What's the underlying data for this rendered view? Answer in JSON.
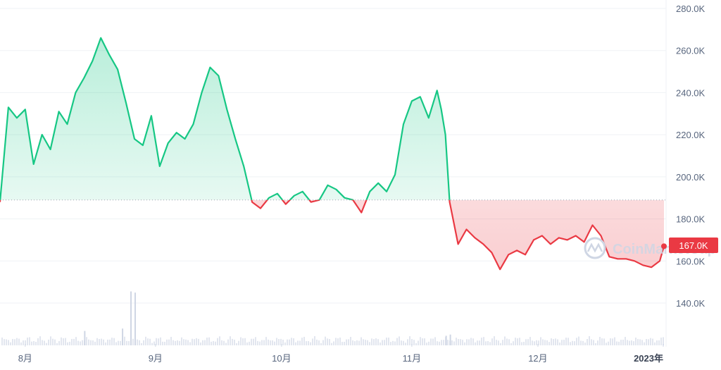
{
  "watermark": "CoinMarketCap",
  "colors": {
    "up": "#16c784",
    "down": "#ea3943",
    "grid": "#eff2f5",
    "volume": "#cfd6e4",
    "axis_text": "#58667e"
  },
  "chart_data": {
    "type": "line",
    "title": "",
    "xlabel": "",
    "ylabel": "",
    "ylim": [
      122000,
      282000
    ],
    "baseline": 189000,
    "current_value_label": "167.0K",
    "current_value": 167000,
    "y_ticks": [
      {
        "value": 140000,
        "label": "140.0K"
      },
      {
        "value": 160000,
        "label": "160.0K"
      },
      {
        "value": 180000,
        "label": "180.0K"
      },
      {
        "value": 200000,
        "label": "200.0K"
      },
      {
        "value": 220000,
        "label": "220.0K"
      },
      {
        "value": 240000,
        "label": "240.0K"
      },
      {
        "value": 260000,
        "label": "260.0K"
      },
      {
        "value": 280000,
        "label": "280.0K"
      }
    ],
    "x_range": [
      "2022-07-26",
      "2022-12-31"
    ],
    "x_ticks": [
      {
        "date": "2022-08-01",
        "label": "8月",
        "bold": false
      },
      {
        "date": "2022-09-01",
        "label": "9月",
        "bold": false
      },
      {
        "date": "2022-10-01",
        "label": "10月",
        "bold": false
      },
      {
        "date": "2022-11-01",
        "label": "11月",
        "bold": false
      },
      {
        "date": "2022-12-01",
        "label": "12月",
        "bold": false
      },
      {
        "date": "2023-01-01",
        "label": "2023年",
        "bold": true
      }
    ],
    "grid": true,
    "series": [
      {
        "values": [
          [
            "2022-07-26",
            188000
          ],
          [
            "2022-07-28",
            233000
          ],
          [
            "2022-07-30",
            228000
          ],
          [
            "2022-08-01",
            232000
          ],
          [
            "2022-08-03",
            206000
          ],
          [
            "2022-08-05",
            220000
          ],
          [
            "2022-08-07",
            213000
          ],
          [
            "2022-08-09",
            231000
          ],
          [
            "2022-08-11",
            225000
          ],
          [
            "2022-08-13",
            240000
          ],
          [
            "2022-08-15",
            247000
          ],
          [
            "2022-08-17",
            255000
          ],
          [
            "2022-08-19",
            266000
          ],
          [
            "2022-08-21",
            258000
          ],
          [
            "2022-08-23",
            251000
          ],
          [
            "2022-08-25",
            235000
          ],
          [
            "2022-08-27",
            218000
          ],
          [
            "2022-08-29",
            215000
          ],
          [
            "2022-08-31",
            229000
          ],
          [
            "2022-09-02",
            205000
          ],
          [
            "2022-09-04",
            216000
          ],
          [
            "2022-09-06",
            221000
          ],
          [
            "2022-09-08",
            218000
          ],
          [
            "2022-09-10",
            225000
          ],
          [
            "2022-09-12",
            240000
          ],
          [
            "2022-09-14",
            252000
          ],
          [
            "2022-09-16",
            248000
          ],
          [
            "2022-09-18",
            232000
          ],
          [
            "2022-09-20",
            218000
          ],
          [
            "2022-09-22",
            205000
          ],
          [
            "2022-09-24",
            188000
          ],
          [
            "2022-09-26",
            185000
          ],
          [
            "2022-09-28",
            190000
          ],
          [
            "2022-09-30",
            192000
          ],
          [
            "2022-10-02",
            187000
          ],
          [
            "2022-10-04",
            191000
          ],
          [
            "2022-10-06",
            193000
          ],
          [
            "2022-10-08",
            188000
          ],
          [
            "2022-10-10",
            189000
          ],
          [
            "2022-10-12",
            196000
          ],
          [
            "2022-10-14",
            194000
          ],
          [
            "2022-10-16",
            190000
          ],
          [
            "2022-10-18",
            189000
          ],
          [
            "2022-10-20",
            183000
          ],
          [
            "2022-10-22",
            193000
          ],
          [
            "2022-10-24",
            197000
          ],
          [
            "2022-10-26",
            193000
          ],
          [
            "2022-10-28",
            201000
          ],
          [
            "2022-10-30",
            225000
          ],
          [
            "2022-11-01",
            236000
          ],
          [
            "2022-11-03",
            238000
          ],
          [
            "2022-11-05",
            228000
          ],
          [
            "2022-11-07",
            241000
          ],
          [
            "2022-11-08",
            232000
          ],
          [
            "2022-11-09",
            220000
          ],
          [
            "2022-11-10",
            188000
          ],
          [
            "2022-11-12",
            168000
          ],
          [
            "2022-11-14",
            175000
          ],
          [
            "2022-11-16",
            171000
          ],
          [
            "2022-11-18",
            168000
          ],
          [
            "2022-11-20",
            164000
          ],
          [
            "2022-11-22",
            156000
          ],
          [
            "2022-11-24",
            163000
          ],
          [
            "2022-11-26",
            165000
          ],
          [
            "2022-11-28",
            163000
          ],
          [
            "2022-11-30",
            170000
          ],
          [
            "2022-12-02",
            172000
          ],
          [
            "2022-12-04",
            168000
          ],
          [
            "2022-12-06",
            171000
          ],
          [
            "2022-12-08",
            170000
          ],
          [
            "2022-12-10",
            172000
          ],
          [
            "2022-12-12",
            169000
          ],
          [
            "2022-12-14",
            177000
          ],
          [
            "2022-12-16",
            172000
          ],
          [
            "2022-12-18",
            162000
          ],
          [
            "2022-12-20",
            161000
          ],
          [
            "2022-12-22",
            161000
          ],
          [
            "2022-12-24",
            160000
          ],
          [
            "2022-12-26",
            158000
          ],
          [
            "2022-12-28",
            157000
          ],
          [
            "2022-12-30",
            160000
          ],
          [
            "2022-12-31",
            167000
          ]
        ]
      }
    ],
    "volume": [
      [
        "2022-08-15",
        12
      ],
      [
        "2022-08-24",
        14
      ],
      [
        "2022-08-26",
        45
      ],
      [
        "2022-08-27",
        44
      ],
      [
        "2022-11-09",
        8
      ],
      [
        "2022-11-10",
        9
      ]
    ]
  }
}
